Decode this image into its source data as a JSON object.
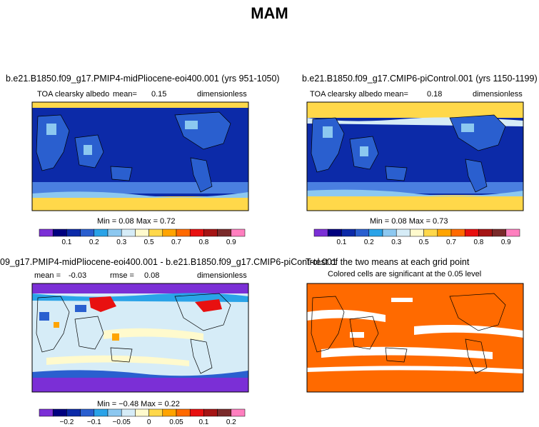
{
  "title": "MAM",
  "panels": [
    {
      "title": "b.e21.B1850.f09_g17.PMIP4-midPliocene-eoi400.001 (yrs 951-1050)",
      "variable": "TOA  clearsky  albedo",
      "mean_label": "mean=",
      "mean": "0.15",
      "units": "dimensionless",
      "minmax": "Min =    0.08  Max =    0.72",
      "colorbar": {
        "colors": [
          "#7b2fd6",
          "#00007f",
          "#0c2aa8",
          "#2a5fcf",
          "#2aa3e8",
          "#8cc8f0",
          "#d6ecf7",
          "#fffacd",
          "#ffd84a",
          "#ffa400",
          "#ff6a00",
          "#e81010",
          "#a51414",
          "#7a2a2a",
          "#ff7fbf"
        ],
        "labels": [
          "0.1",
          "0.2",
          "0.3",
          "0.5",
          "0.7",
          "0.8",
          "0.9"
        ]
      }
    },
    {
      "title": "b.e21.B1850.f09_g17.CMIP6-piControl.001 (yrs 1150-1199)",
      "variable": "TOA  clearsky  albedo",
      "mean_label": "mean=",
      "mean": "0.18",
      "units": "dimensionless",
      "minmax": "Min =    0.08  Max =    0.73",
      "colorbar": {
        "colors": [
          "#7b2fd6",
          "#00007f",
          "#0c2aa8",
          "#2a5fcf",
          "#2aa3e8",
          "#8cc8f0",
          "#d6ecf7",
          "#fffacd",
          "#ffd84a",
          "#ffa400",
          "#ff6a00",
          "#e81010",
          "#a51414",
          "#7a2a2a",
          "#ff7fbf"
        ],
        "labels": [
          "0.1",
          "0.2",
          "0.3",
          "0.5",
          "0.7",
          "0.8",
          "0.9"
        ]
      }
    },
    {
      "title": "09_g17.PMIP4-midPliocene-eoi400.001 - b.e21.B1850.f09_g17.CMIP6-piControl.001",
      "mean_label": "mean =",
      "mean": "-0.03",
      "rmse_label": "rmse =",
      "rmse": "0.08",
      "units": "dimensionless",
      "minmax": "Min =   −0.48  Max =    0.22",
      "colorbar": {
        "colors": [
          "#7b2fd6",
          "#00007f",
          "#0c2aa8",
          "#2a5fcf",
          "#2aa3e8",
          "#8cc8f0",
          "#d6ecf7",
          "#fffacd",
          "#ffd84a",
          "#ffa400",
          "#ff6a00",
          "#e81010",
          "#a51414",
          "#7a2a2a",
          "#ff7fbf"
        ],
        "labels": [
          "−0.2",
          "−0.1",
          "−0.05",
          "0",
          "0.05",
          "0.1",
          "0.2"
        ]
      }
    },
    {
      "title": "T-test of the two means at each grid point",
      "subtitle": "Colored cells are significant at the 0.05 level"
    }
  ],
  "colors": {
    "p1_bg": "#0c2aa8",
    "p1_land": "#2a5fcf",
    "p1_band": "#4a7fe0",
    "p1_ice": "#ffd84a",
    "p2_bg": "#0c2aa8",
    "p2_land": "#2a5fcf",
    "p2_band": "#4a7fe0",
    "p2_ice": "#ffd84a",
    "p3_bg": "#d6ecf7",
    "p3_yellow": "#fffacd",
    "p3_purple": "#7b2fd6",
    "p3_red": "#e81010",
    "p4_sig": "#ff6a00",
    "p4_nonsig": "#ffffff"
  }
}
